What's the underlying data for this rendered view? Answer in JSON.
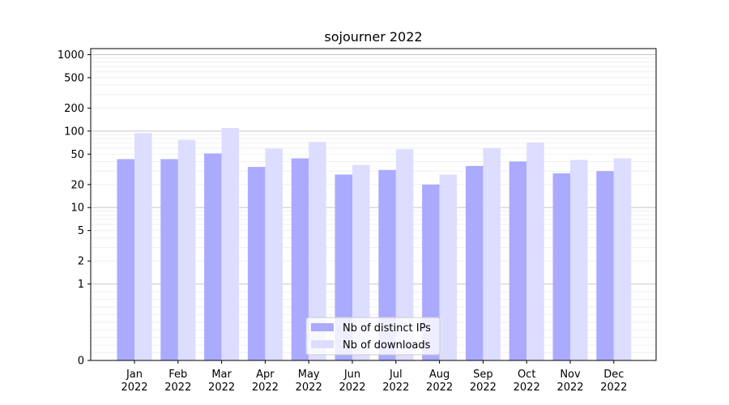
{
  "chart_data": {
    "type": "bar",
    "title": "sojourner 2022",
    "xlabel": "",
    "ylabel": "",
    "y_scale": "symlog",
    "ylim": [
      0,
      1200
    ],
    "y_ticks": [
      {
        "value": 0,
        "label": "0"
      },
      {
        "value": 1,
        "label": "1"
      },
      {
        "value": 2,
        "label": "2"
      },
      {
        "value": 5,
        "label": "5"
      },
      {
        "value": 10,
        "label": "10"
      },
      {
        "value": 20,
        "label": "20"
      },
      {
        "value": 50,
        "label": "50"
      },
      {
        "value": 100,
        "label": "100"
      },
      {
        "value": 200,
        "label": "200"
      },
      {
        "value": 500,
        "label": "500"
      },
      {
        "value": 1000,
        "label": "1000"
      }
    ],
    "grid": true,
    "categories": [
      {
        "month": "Jan",
        "year": "2022"
      },
      {
        "month": "Feb",
        "year": "2022"
      },
      {
        "month": "Mar",
        "year": "2022"
      },
      {
        "month": "Apr",
        "year": "2022"
      },
      {
        "month": "May",
        "year": "2022"
      },
      {
        "month": "Jun",
        "year": "2022"
      },
      {
        "month": "Jul",
        "year": "2022"
      },
      {
        "month": "Aug",
        "year": "2022"
      },
      {
        "month": "Sep",
        "year": "2022"
      },
      {
        "month": "Oct",
        "year": "2022"
      },
      {
        "month": "Nov",
        "year": "2022"
      },
      {
        "month": "Dec",
        "year": "2022"
      }
    ],
    "series": [
      {
        "name": "Nb of distinct IPs",
        "color": "#aaaaff",
        "values": [
          43,
          43,
          51,
          34,
          44,
          27,
          31,
          20,
          35,
          40,
          28,
          30
        ]
      },
      {
        "name": "Nb of downloads",
        "color": "#ddddff",
        "values": [
          94,
          77,
          110,
          59,
          72,
          36,
          58,
          27,
          60,
          71,
          42,
          44
        ]
      }
    ],
    "legend_position": "lower-center"
  }
}
